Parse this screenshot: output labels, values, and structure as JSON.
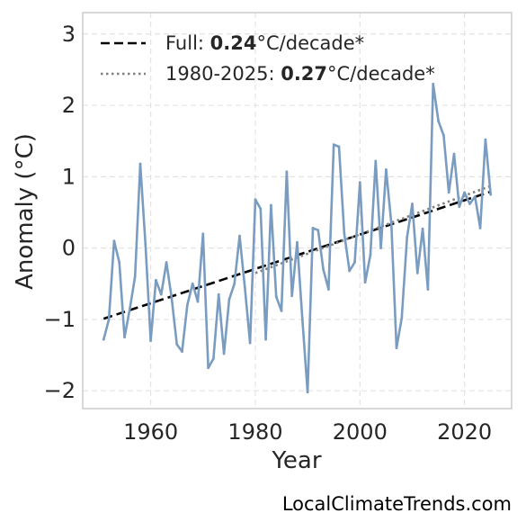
{
  "chart_data": {
    "type": "line",
    "xlabel": "Year",
    "ylabel": "Anomaly (°C)",
    "xlim": [
      1947,
      2029
    ],
    "ylim": [
      -2.25,
      3.3
    ],
    "xticks": [
      1960,
      1980,
      2000,
      2020
    ],
    "yticks": [
      -2,
      -1,
      0,
      1,
      2,
      3
    ],
    "ytick_labels": [
      "−2",
      "−1",
      "0",
      "1",
      "2",
      "3"
    ],
    "grid": true,
    "legend_position": "top-left",
    "series": [
      {
        "style": "solid",
        "color": "#7a9cc0",
        "x": [
          1951,
          1952,
          1953,
          1954,
          1955,
          1956,
          1957,
          1958,
          1959,
          1960,
          1961,
          1962,
          1963,
          1964,
          1965,
          1966,
          1967,
          1968,
          1969,
          1970,
          1971,
          1972,
          1973,
          1974,
          1975,
          1976,
          1977,
          1978,
          1979,
          1980,
          1981,
          1982,
          1983,
          1984,
          1985,
          1986,
          1987,
          1988,
          1989,
          1990,
          1991,
          1992,
          1993,
          1994,
          1995,
          1996,
          1997,
          1998,
          1999,
          2000,
          2001,
          2002,
          2003,
          2004,
          2005,
          2006,
          2007,
          2008,
          2009,
          2010,
          2011,
          2012,
          2013,
          2014,
          2015,
          2016,
          2017,
          2018,
          2019,
          2020,
          2021,
          2022,
          2023,
          2024,
          2025
        ],
        "y": [
          -1.28,
          -1.0,
          0.1,
          -0.2,
          -1.25,
          -0.85,
          -0.4,
          1.18,
          0.05,
          -1.3,
          -0.45,
          -0.65,
          -0.2,
          -0.7,
          -1.35,
          -1.45,
          -0.8,
          -0.5,
          -0.75,
          0.2,
          -1.68,
          -1.55,
          -0.65,
          -1.48,
          -0.72,
          -0.5,
          0.17,
          -0.55,
          -1.33,
          0.68,
          0.55,
          -1.28,
          0.6,
          -0.68,
          -0.88,
          1.07,
          -0.67,
          0.08,
          -1.0,
          -2.02,
          0.28,
          0.25,
          -0.3,
          -0.58,
          1.45,
          1.42,
          0.2,
          -0.32,
          -0.2,
          0.92,
          -0.48,
          -0.1,
          1.22,
          0.0,
          1.1,
          0.35,
          -1.4,
          -0.98,
          0.15,
          0.62,
          -0.35,
          0.27,
          -0.58,
          2.3,
          1.78,
          1.58,
          0.78,
          1.32,
          0.58,
          0.78,
          0.62,
          0.72,
          0.28,
          1.52,
          0.75
        ]
      }
    ],
    "trend_lines": [
      {
        "label_prefix": "Full: ",
        "label_value": "0.24",
        "label_suffix": "°C/decade*",
        "style": "dashed",
        "color": "#000000",
        "x": [
          1951,
          2025
        ],
        "y": [
          -0.99,
          0.79
        ]
      },
      {
        "label_prefix": "1980-2025: ",
        "label_value": "0.27",
        "label_suffix": "°C/decade*",
        "style": "dotted",
        "color": "#808080",
        "x": [
          1980,
          2025
        ],
        "y": [
          -0.35,
          0.87
        ]
      }
    ]
  },
  "credit": "LocalClimateTrends.com"
}
